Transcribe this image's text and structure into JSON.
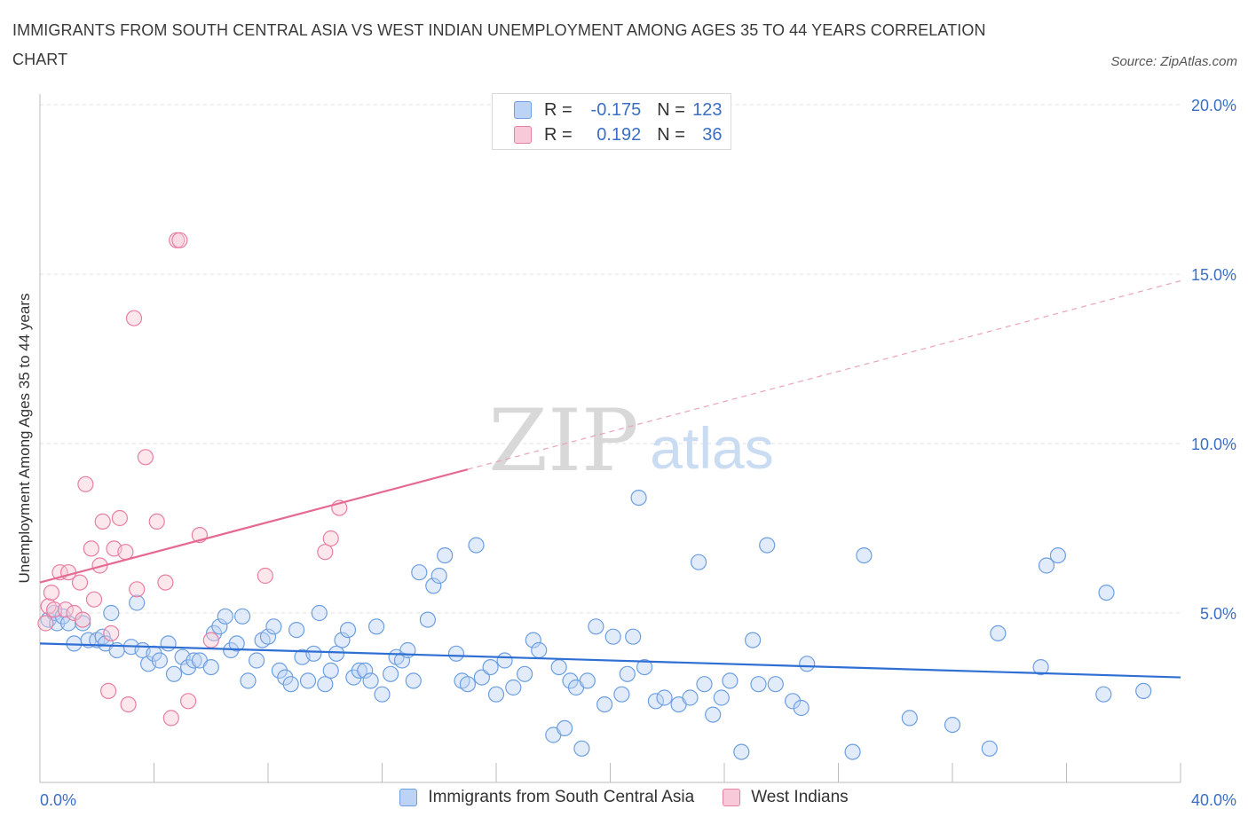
{
  "title": "IMMIGRANTS FROM SOUTH CENTRAL ASIA VS WEST INDIAN UNEMPLOYMENT AMONG AGES 35 TO 44 YEARS CORRELATION CHART",
  "source": "Source: ZipAtlas.com",
  "watermark": {
    "zip": "ZIP",
    "atlas": "atlas"
  },
  "legend": {
    "r_label": "R =",
    "n_label": "N =",
    "rows": [
      {
        "series": "Immigrants from South Central Asia",
        "r": "-0.175",
        "n": "123",
        "color": "#6d9fe0",
        "fill": "#bcd3f5"
      },
      {
        "series": "West Indians",
        "r": "0.192",
        "n": "36",
        "color": "#e77fa2",
        "fill": "#f8c9d8"
      }
    ]
  },
  "chart_data": {
    "type": "scatter",
    "ylabel": "Unemployment Among Ages 35 to 44 years",
    "xlim": [
      0,
      40
    ],
    "ylim": [
      0,
      20
    ],
    "x_tick_labels": [
      "0.0%",
      "40.0%"
    ],
    "y_ticks": [
      5,
      10,
      15,
      20
    ],
    "y_tick_labels": [
      "5.0%",
      "10.0%",
      "15.0%",
      "20.0%"
    ],
    "grid": true,
    "legend_position": "bottom",
    "series": [
      {
        "name": "Immigrants from South Central Asia",
        "color": "#6d9fe0",
        "fill": "#bcd3f5",
        "trend": {
          "x0": 0,
          "y0": 4.1,
          "x1": 40,
          "y1": 3.1
        },
        "points": [
          [
            0.3,
            4.8
          ],
          [
            0.5,
            5.0
          ],
          [
            0.6,
            4.7
          ],
          [
            0.8,
            4.9
          ],
          [
            1.0,
            4.7
          ],
          [
            1.2,
            4.1
          ],
          [
            1.5,
            4.7
          ],
          [
            1.7,
            4.2
          ],
          [
            2.0,
            4.2
          ],
          [
            2.2,
            4.3
          ],
          [
            2.3,
            4.1
          ],
          [
            2.5,
            5.0
          ],
          [
            2.7,
            3.9
          ],
          [
            3.2,
            4.0
          ],
          [
            3.4,
            5.3
          ],
          [
            3.6,
            3.9
          ],
          [
            3.8,
            3.5
          ],
          [
            4.0,
            3.8
          ],
          [
            4.2,
            3.6
          ],
          [
            4.5,
            4.1
          ],
          [
            4.7,
            3.2
          ],
          [
            5.0,
            3.7
          ],
          [
            5.2,
            3.4
          ],
          [
            5.4,
            3.6
          ],
          [
            5.6,
            3.6
          ],
          [
            6.0,
            3.4
          ],
          [
            6.1,
            4.4
          ],
          [
            6.3,
            4.6
          ],
          [
            6.5,
            4.9
          ],
          [
            6.7,
            3.9
          ],
          [
            6.9,
            4.1
          ],
          [
            7.1,
            4.9
          ],
          [
            7.3,
            3.0
          ],
          [
            7.6,
            3.6
          ],
          [
            7.8,
            4.2
          ],
          [
            8.0,
            4.3
          ],
          [
            8.2,
            4.6
          ],
          [
            8.4,
            3.3
          ],
          [
            8.6,
            3.1
          ],
          [
            8.8,
            2.9
          ],
          [
            9.0,
            4.5
          ],
          [
            9.2,
            3.7
          ],
          [
            9.4,
            3.0
          ],
          [
            9.6,
            3.8
          ],
          [
            9.8,
            5.0
          ],
          [
            10.0,
            2.9
          ],
          [
            10.2,
            3.3
          ],
          [
            10.4,
            3.8
          ],
          [
            10.6,
            4.2
          ],
          [
            10.8,
            4.5
          ],
          [
            11.0,
            3.1
          ],
          [
            11.2,
            3.3
          ],
          [
            11.4,
            3.3
          ],
          [
            11.6,
            3.0
          ],
          [
            11.8,
            4.6
          ],
          [
            12.0,
            2.6
          ],
          [
            12.3,
            3.2
          ],
          [
            12.5,
            3.7
          ],
          [
            12.7,
            3.6
          ],
          [
            12.9,
            3.9
          ],
          [
            13.1,
            3.0
          ],
          [
            13.3,
            6.2
          ],
          [
            13.6,
            4.8
          ],
          [
            13.8,
            5.8
          ],
          [
            14.0,
            6.1
          ],
          [
            14.2,
            6.7
          ],
          [
            14.6,
            3.8
          ],
          [
            14.8,
            3.0
          ],
          [
            15.0,
            2.9
          ],
          [
            15.3,
            7.0
          ],
          [
            15.5,
            3.1
          ],
          [
            15.8,
            3.4
          ],
          [
            16.0,
            2.6
          ],
          [
            16.3,
            3.6
          ],
          [
            16.6,
            2.8
          ],
          [
            17.0,
            3.2
          ],
          [
            17.3,
            4.2
          ],
          [
            17.5,
            3.9
          ],
          [
            18.0,
            1.4
          ],
          [
            18.2,
            3.4
          ],
          [
            18.4,
            1.6
          ],
          [
            18.6,
            3.0
          ],
          [
            18.8,
            2.8
          ],
          [
            19.0,
            1.0
          ],
          [
            19.2,
            3.0
          ],
          [
            19.5,
            4.6
          ],
          [
            19.8,
            2.3
          ],
          [
            20.1,
            4.3
          ],
          [
            20.4,
            2.6
          ],
          [
            20.6,
            3.2
          ],
          [
            20.8,
            4.3
          ],
          [
            21.2,
            3.4
          ],
          [
            21.6,
            2.4
          ],
          [
            21.9,
            2.5
          ],
          [
            22.4,
            2.3
          ],
          [
            22.8,
            2.5
          ],
          [
            23.1,
            6.5
          ],
          [
            23.3,
            2.9
          ],
          [
            23.6,
            2.0
          ],
          [
            23.9,
            2.5
          ],
          [
            24.2,
            3.0
          ],
          [
            24.6,
            0.9
          ],
          [
            25.0,
            4.2
          ],
          [
            25.2,
            2.9
          ],
          [
            25.5,
            7.0
          ],
          [
            25.8,
            2.9
          ],
          [
            26.4,
            2.4
          ],
          [
            26.7,
            2.2
          ],
          [
            26.9,
            3.5
          ],
          [
            28.5,
            0.9
          ],
          [
            28.9,
            6.7
          ],
          [
            30.5,
            1.9
          ],
          [
            32.0,
            1.7
          ],
          [
            33.3,
            1.0
          ],
          [
            33.6,
            4.4
          ],
          [
            35.1,
            3.4
          ],
          [
            35.3,
            6.4
          ],
          [
            35.7,
            6.7
          ],
          [
            37.3,
            2.6
          ],
          [
            37.4,
            5.6
          ],
          [
            38.7,
            2.7
          ],
          [
            21.0,
            8.4
          ]
        ]
      },
      {
        "name": "West Indians",
        "color": "#e77fa2",
        "fill": "#f8c9d8",
        "trend": {
          "x0": 0,
          "y0": 5.9,
          "x1": 40,
          "y1": 14.8,
          "solid_until": 15
        },
        "points": [
          [
            0.2,
            4.7
          ],
          [
            0.3,
            5.2
          ],
          [
            0.4,
            5.6
          ],
          [
            0.5,
            5.1
          ],
          [
            0.7,
            6.2
          ],
          [
            0.9,
            5.1
          ],
          [
            1.0,
            6.2
          ],
          [
            1.2,
            5.0
          ],
          [
            1.4,
            5.9
          ],
          [
            1.5,
            4.8
          ],
          [
            1.6,
            8.8
          ],
          [
            1.8,
            6.9
          ],
          [
            1.9,
            5.4
          ],
          [
            2.1,
            6.4
          ],
          [
            2.2,
            7.7
          ],
          [
            2.4,
            2.7
          ],
          [
            2.5,
            4.4
          ],
          [
            2.6,
            6.9
          ],
          [
            2.8,
            7.8
          ],
          [
            3.0,
            6.8
          ],
          [
            3.1,
            2.3
          ],
          [
            3.3,
            13.7
          ],
          [
            3.4,
            5.7
          ],
          [
            3.7,
            9.6
          ],
          [
            4.1,
            7.7
          ],
          [
            4.4,
            5.9
          ],
          [
            4.6,
            1.9
          ],
          [
            4.8,
            16.0
          ],
          [
            4.9,
            16.0
          ],
          [
            5.2,
            2.4
          ],
          [
            5.6,
            7.3
          ],
          [
            6.0,
            4.2
          ],
          [
            7.9,
            6.1
          ],
          [
            10.0,
            6.8
          ],
          [
            10.2,
            7.2
          ],
          [
            10.5,
            8.1
          ]
        ]
      }
    ]
  }
}
